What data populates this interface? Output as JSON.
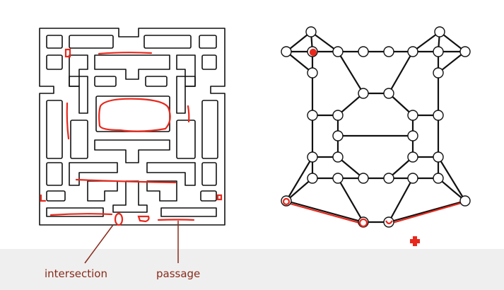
{
  "labels": {
    "intersection": "intersection",
    "passage": "passage"
  },
  "colors": {
    "ink": "#111111",
    "annotation": "#e8281c",
    "label": "#8a2a1a",
    "band": "#efefef"
  }
}
